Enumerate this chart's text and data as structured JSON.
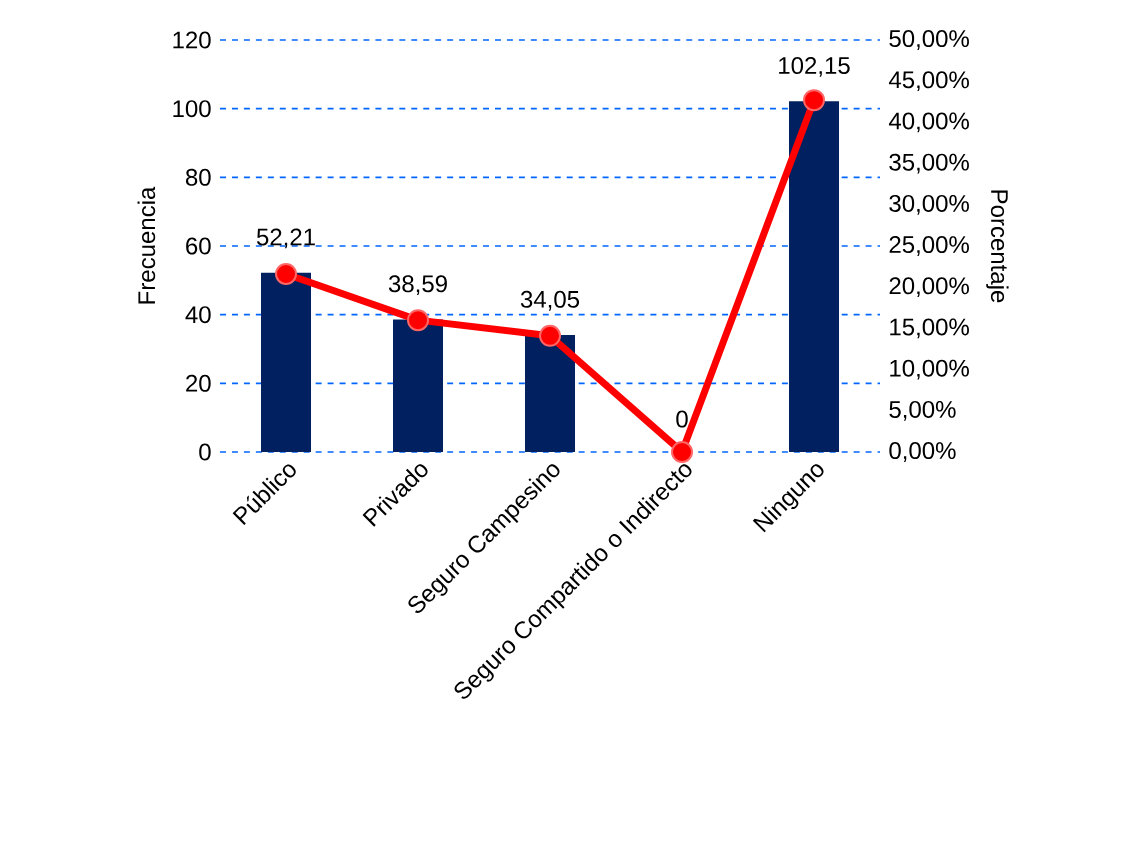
{
  "chart_data": {
    "type": "bar",
    "categories": [
      "Público",
      "Privado",
      "Seguro Campesino",
      "Seguro Compartido o Indirecto",
      "Ninguno"
    ],
    "values": [
      52.21,
      38.59,
      34.05,
      0,
      102.15
    ],
    "value_labels": [
      "52,21",
      "38,59",
      "34,05",
      "0",
      "102,15"
    ],
    "color": "#002060",
    "ylabel": "Frecuencia",
    "y2label": "Porcentaje",
    "ylim": [
      0,
      120
    ],
    "yticks": [
      0,
      20,
      40,
      60,
      80,
      100,
      120
    ],
    "y2lim": [
      0,
      50
    ],
    "y2ticks": [
      {
        "value": 0,
        "label": "0,00%"
      },
      {
        "value": 5,
        "label": "5,00%"
      },
      {
        "value": 10,
        "label": "10,00%"
      },
      {
        "value": 15,
        "label": "15,00%"
      },
      {
        "value": 20,
        "label": "20,00%"
      },
      {
        "value": 25,
        "label": "25,00%"
      },
      {
        "value": 30,
        "label": "30,00%"
      },
      {
        "value": 35,
        "label": "35,00%"
      },
      {
        "value": 40,
        "label": "40,00%"
      },
      {
        "value": 45,
        "label": "45,00%"
      },
      {
        "value": 50,
        "label": "50,00%"
      }
    ],
    "series": [
      {
        "type": "line",
        "axis": "y2",
        "color": "#ff0000",
        "values": [
          21.6,
          16.0,
          14.1,
          0,
          42.7
        ]
      }
    ],
    "grid": "y",
    "marker": "circle",
    "line_style": "solid"
  }
}
